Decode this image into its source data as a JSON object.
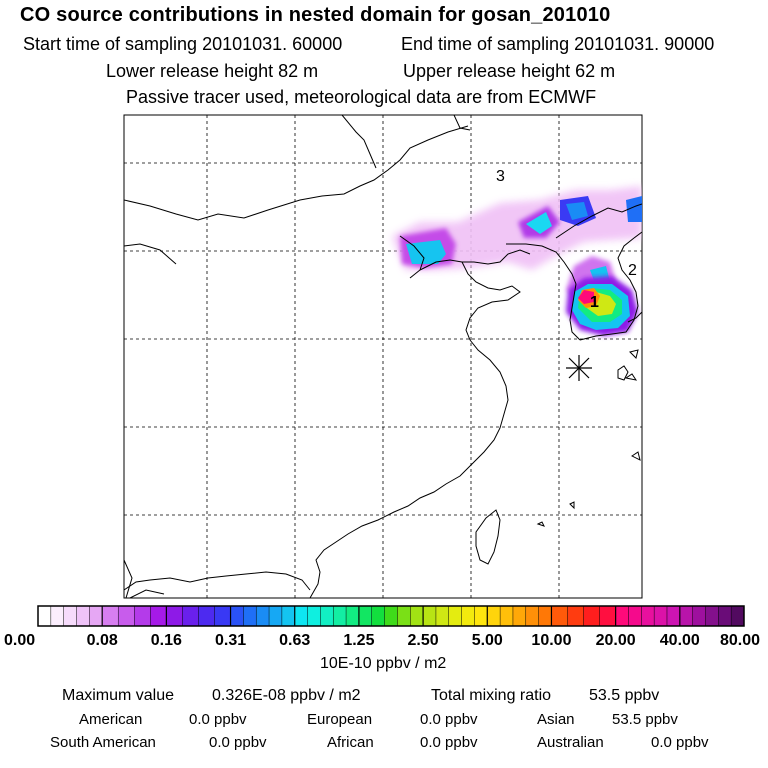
{
  "header": {
    "title": "CO  source contributions in nested domain for gosan_201010",
    "start_label": "Start time of sampling 20101031. 60000",
    "end_label": "End time of sampling 20101031. 90000",
    "lower_label": "Lower release height   82 m",
    "upper_label": "Upper release height   62 m",
    "note": "Passive tracer used, meteorological data are from ECMWF"
  },
  "chart_data": {
    "type": "heatmap",
    "title": "CO  source contributions in nested domain for gosan_201010",
    "grid": true,
    "grid_style": "dashed",
    "grid_columns": 6,
    "grid_rows": 5,
    "annotations": [
      "1",
      "2",
      "3"
    ],
    "receptor_marker": "asterisk",
    "colorbar": {
      "ticks": [
        "0.00",
        "0.08",
        "0.16",
        "0.31",
        "0.63",
        "1.25",
        "2.50",
        "5.00",
        "10.00",
        "20.00",
        "40.00",
        "80.00"
      ],
      "unit": "10E-10 ppbv / m2",
      "segment_colors": [
        [
          "#ffffff",
          "#fbeefd",
          "#f6dbfb",
          "#efc3f8",
          "#e6a7f4"
        ],
        [
          "#d77ef0",
          "#c85cec",
          "#b43bea",
          "#a61ae8"
        ],
        [
          "#8e1ae7",
          "#6a20ec",
          "#4d2af0",
          "#3939f4"
        ],
        [
          "#2a52f6",
          "#1f6ff6",
          "#1a8cf5",
          "#16a8f4",
          "#14c4f1"
        ],
        [
          "#0ee6f2",
          "#0fefe0",
          "#12efc3",
          "#13eea3",
          "#12ec82"
        ],
        [
          "#12e662",
          "#12df3e",
          "#3fdb1a",
          "#7ae016",
          "#a2e314"
        ],
        [
          "#b8e414",
          "#cfe814",
          "#e4ec10",
          "#f3ea0e",
          "#ffe60e"
        ],
        [
          "#ffd40c",
          "#ffbf0a",
          "#ffa808",
          "#ff9008",
          "#ff7806"
        ],
        [
          "#ff5a0a",
          "#ff3c10",
          "#ff1e1e",
          "#ff0f40"
        ],
        [
          "#ff0a7a",
          "#f50a8c",
          "#e8109e",
          "#dc12a8",
          "#cd14b2"
        ],
        [
          "#b814aa",
          "#9e109e",
          "#84108c",
          "#6a0c78",
          "#520a60"
        ]
      ]
    },
    "plumes": [
      {
        "region": "plume-3",
        "level": "0.16-0.31"
      },
      {
        "region": "plume-2",
        "level": "0.31-0.63"
      },
      {
        "region": "plume-1",
        "level": "20.00-40.00"
      }
    ]
  },
  "stats": {
    "max_label": "Maximum value",
    "max_value": "0.326E-08 ppbv / m2",
    "total_label": "Total mixing ratio",
    "total_value": "53.5 ppbv",
    "rows": [
      [
        {
          "label": "American",
          "value": "0.0 ppbv"
        },
        {
          "label": "European",
          "value": "0.0 ppbv"
        },
        {
          "label": "Asian",
          "value": "53.5 ppbv"
        }
      ],
      [
        {
          "label": "South American",
          "value": "0.0 ppbv"
        },
        {
          "label": "African",
          "value": "0.0 ppbv"
        },
        {
          "label": "Australian",
          "value": "0.0 ppbv"
        }
      ]
    ]
  }
}
